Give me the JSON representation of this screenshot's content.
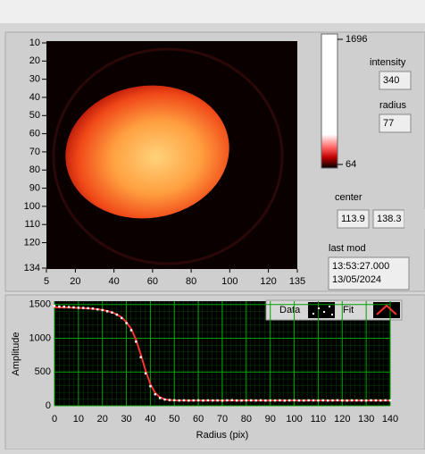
{
  "image": {
    "xlim": [
      5,
      135
    ],
    "xticks": [
      5,
      20,
      40,
      60,
      80,
      100,
      120,
      135
    ],
    "ylim": [
      10,
      134
    ],
    "yticks": [
      10,
      20,
      30,
      40,
      50,
      60,
      70,
      80,
      90,
      100,
      110,
      120,
      134
    ],
    "colorbar": {
      "lim": [
        64,
        1696
      ],
      "ticks": [
        1696,
        64
      ]
    }
  },
  "controls": {
    "intensity_label": "intensity",
    "intensity": "340",
    "radius_label": "radius",
    "radius": "77",
    "center_label": "center",
    "center": [
      "113.9",
      "138.3"
    ],
    "last_mod_label": "last mod",
    "last_mod": [
      "13:53:27.000",
      "13/05/2024"
    ]
  },
  "chart_data": {
    "type": "line",
    "xlabel": "Radius (pix)",
    "ylabel": "Amplitude",
    "xlim": [
      0,
      140
    ],
    "xticks": [
      0,
      10,
      20,
      30,
      40,
      50,
      60,
      70,
      80,
      90,
      100,
      110,
      120,
      130,
      140
    ],
    "ylim": [
      0,
      1550
    ],
    "yticks": [
      0,
      500,
      1000,
      1500
    ],
    "grid": true,
    "x": [
      0,
      2,
      4,
      6,
      8,
      10,
      12,
      14,
      16,
      18,
      20,
      22,
      24,
      26,
      28,
      30,
      32,
      34,
      36,
      38,
      40,
      42,
      44,
      46,
      48,
      50,
      52,
      54,
      56,
      58,
      60,
      62,
      64,
      66,
      68,
      70,
      72,
      74,
      76,
      78,
      80,
      82,
      84,
      86,
      88,
      90,
      92,
      94,
      96,
      98,
      100,
      102,
      104,
      106,
      108,
      110,
      112,
      114,
      116,
      118,
      120,
      122,
      124,
      126,
      128,
      130,
      132,
      134,
      136,
      138,
      140
    ],
    "series": [
      {
        "name": "Data",
        "color": "#ffffff",
        "values": [
          1480,
          1470,
          1468,
          1462,
          1458,
          1452,
          1450,
          1446,
          1440,
          1428,
          1418,
          1400,
          1382,
          1350,
          1300,
          1225,
          1120,
          950,
          720,
          480,
          290,
          170,
          115,
          92,
          85,
          82,
          78,
          80,
          76,
          79,
          81,
          77,
          80,
          78,
          79,
          76,
          80,
          82,
          78,
          77,
          79,
          80,
          78,
          81,
          77,
          79,
          78,
          80,
          76,
          79,
          81,
          78,
          77,
          80,
          79,
          78,
          80,
          77,
          79,
          81,
          78,
          76,
          80,
          79,
          78,
          77,
          80,
          79,
          78,
          81,
          79
        ]
      },
      {
        "name": "Fit",
        "color": "#ff3030",
        "values": [
          1460,
          1458,
          1456,
          1455,
          1453,
          1450,
          1447,
          1443,
          1438,
          1430,
          1420,
          1405,
          1385,
          1355,
          1310,
          1240,
          1140,
          980,
          760,
          520,
          320,
          190,
          125,
          95,
          84,
          80,
          78,
          78,
          78,
          78,
          78,
          78,
          78,
          78,
          78,
          78,
          78,
          78,
          78,
          78,
          78,
          78,
          78,
          78,
          78,
          78,
          78,
          78,
          78,
          78,
          78,
          78,
          78,
          78,
          78,
          78,
          78,
          78,
          78,
          78,
          78,
          78,
          78,
          78,
          78,
          78,
          78,
          78,
          78,
          78,
          78
        ]
      }
    ]
  }
}
